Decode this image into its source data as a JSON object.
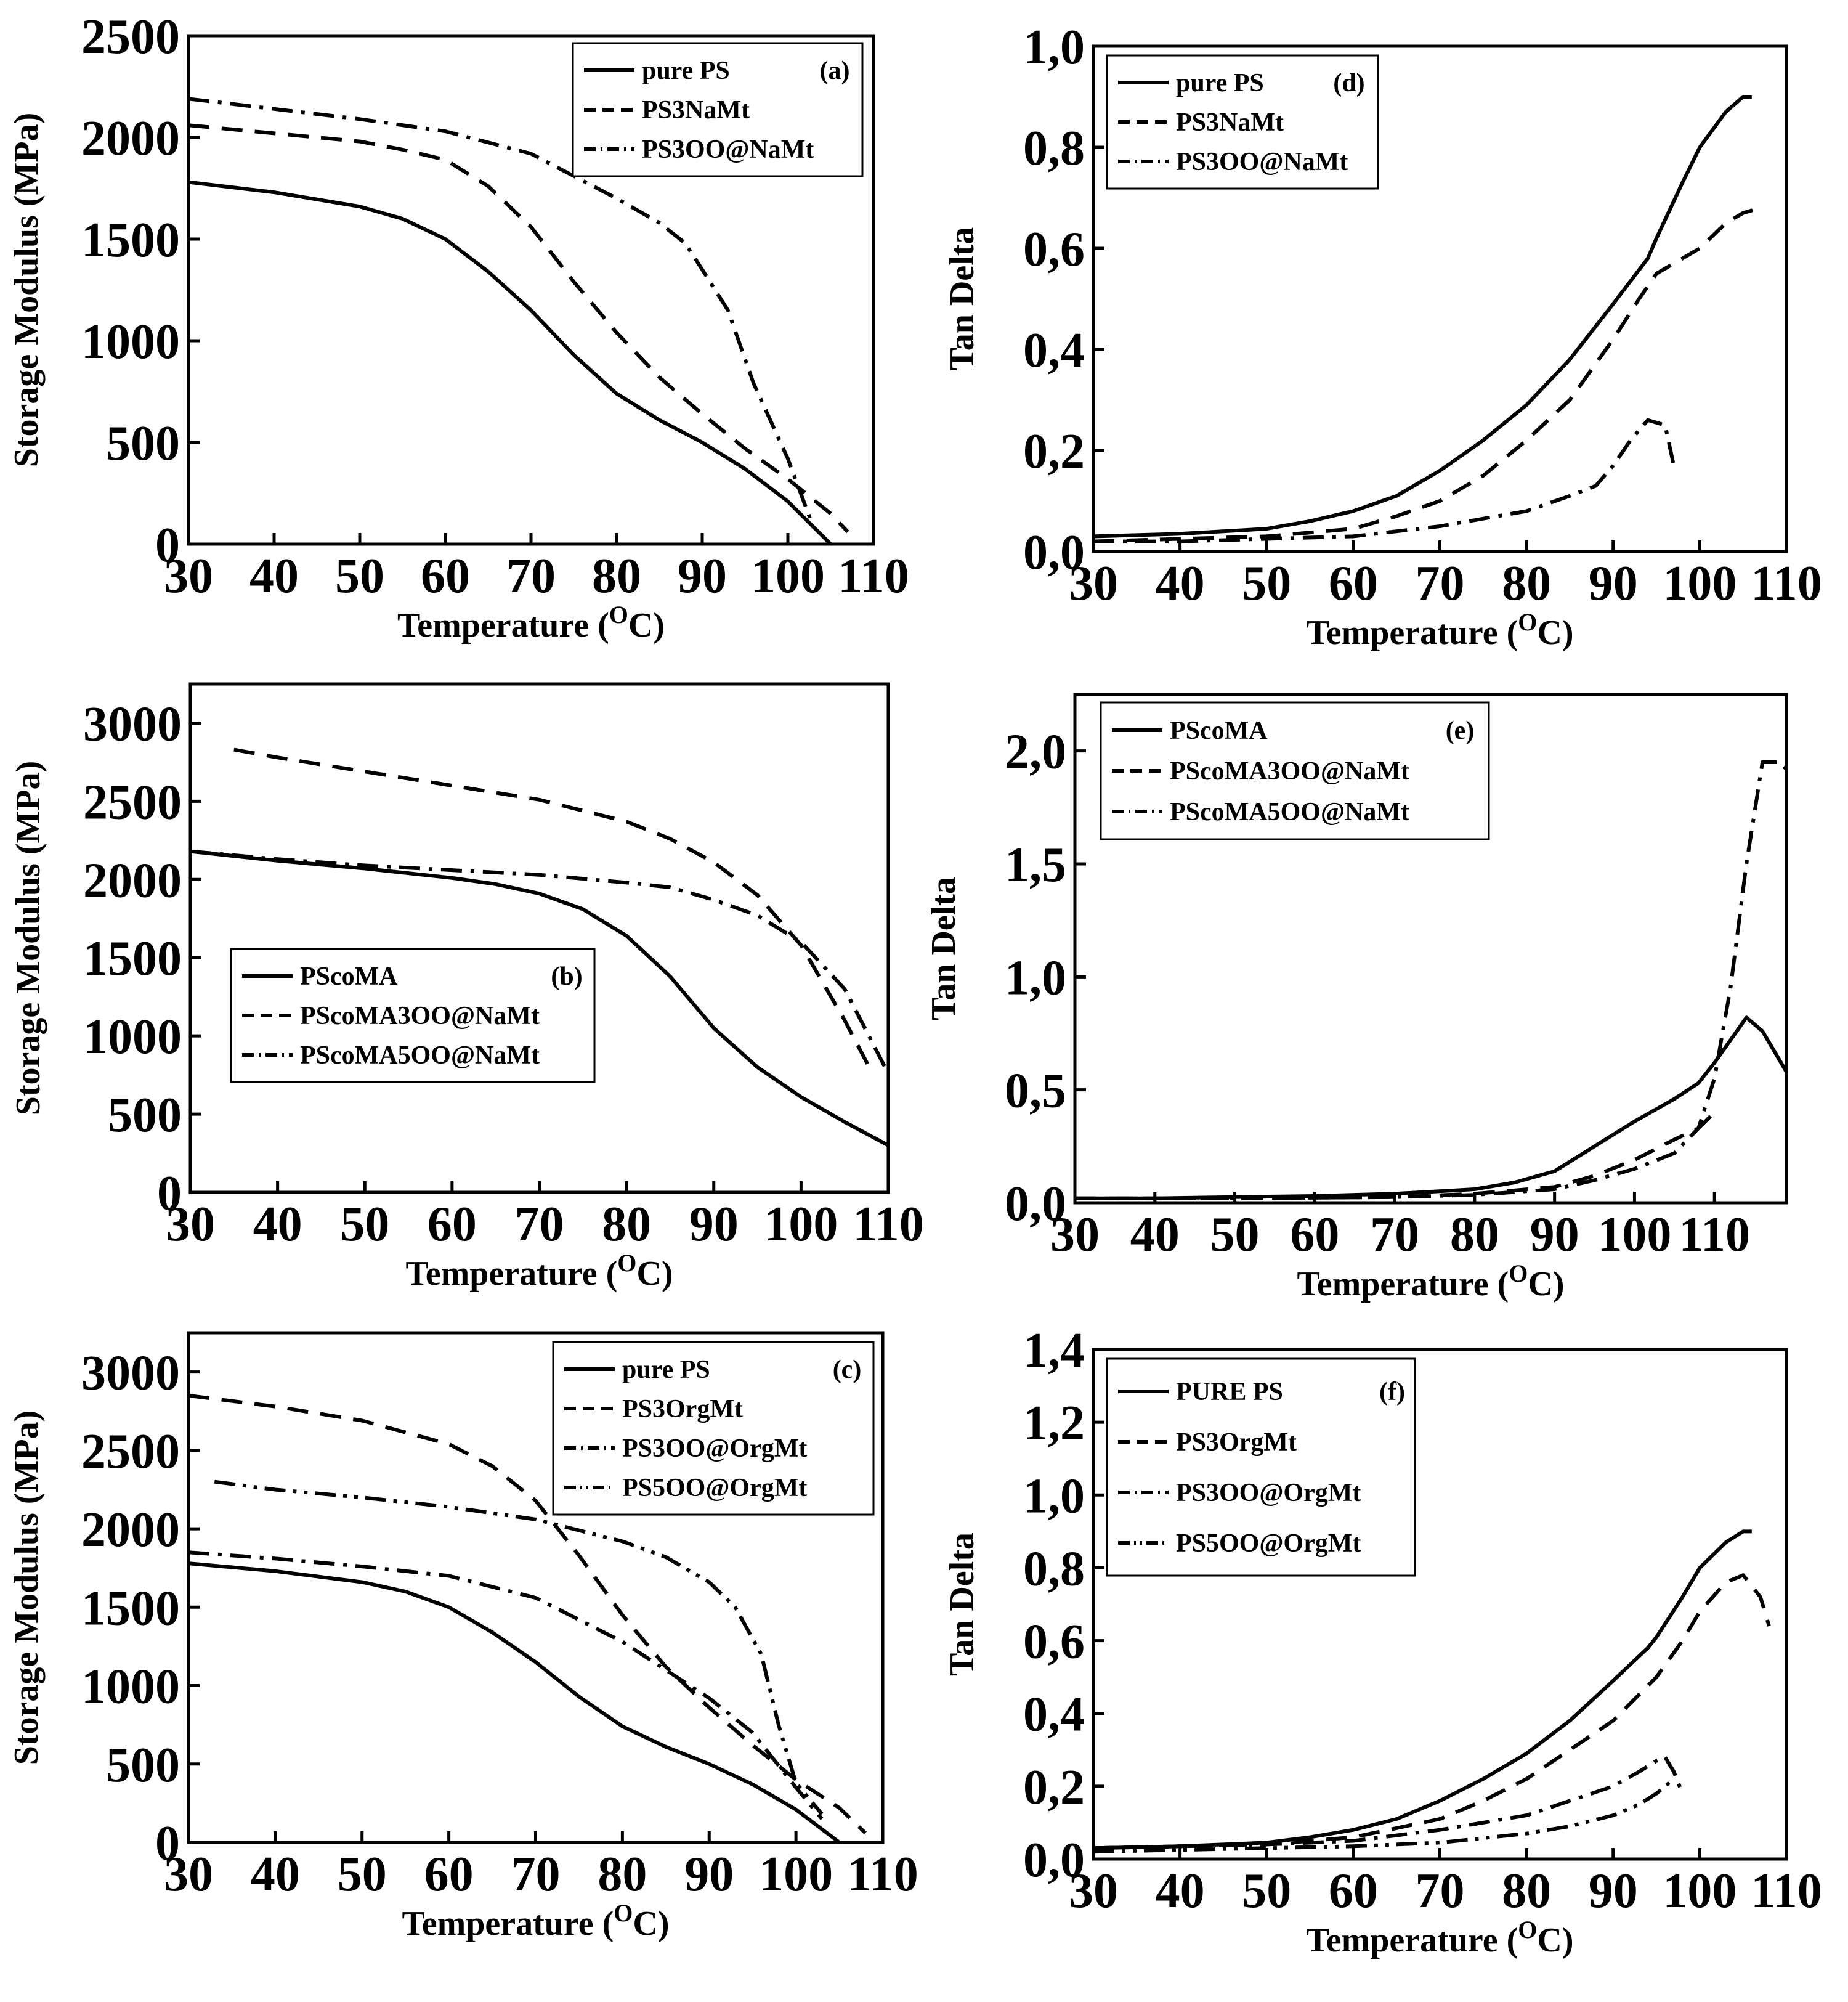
{
  "figure": {
    "description_panels": 6
  },
  "chart_data": [
    {
      "id": "a",
      "type": "line",
      "panel_label": "(a)",
      "xlabel": "Temperature",
      "xunit_base": "(",
      "xunit_sup": "O",
      "xunit_end": "C)",
      "ylabel": "Storage Modulus (MPa)",
      "xlim": [
        30,
        110
      ],
      "ylim": [
        0,
        2500
      ],
      "xticks": [
        30,
        40,
        50,
        60,
        70,
        80,
        90,
        100,
        110
      ],
      "yticks": [
        0,
        500,
        1000,
        1500,
        2000,
        2500
      ],
      "ytick_labels": [
        "0",
        "500",
        "1000",
        "1500",
        "2000",
        "2500"
      ],
      "legend_position": "top-right",
      "series": [
        {
          "name": "pure PS",
          "style": "solid",
          "x": [
            30,
            40,
            50,
            55,
            60,
            65,
            70,
            75,
            80,
            85,
            90,
            95,
            100,
            105
          ],
          "y": [
            1780,
            1730,
            1660,
            1600,
            1500,
            1340,
            1150,
            930,
            740,
            610,
            500,
            370,
            210,
            0
          ]
        },
        {
          "name": "PS3NaMt",
          "style": "dash",
          "x": [
            30,
            40,
            50,
            55,
            60,
            65,
            70,
            75,
            80,
            85,
            90,
            95,
            100,
            105,
            107
          ],
          "y": [
            2060,
            2020,
            1980,
            1940,
            1890,
            1760,
            1560,
            1290,
            1040,
            820,
            640,
            470,
            320,
            150,
            60
          ]
        },
        {
          "name": "PS3OO@NaMt",
          "style": "dashdot",
          "x": [
            30,
            40,
            50,
            60,
            70,
            80,
            85,
            88,
            90,
            93,
            96,
            100,
            103
          ],
          "y": [
            2190,
            2140,
            2090,
            2030,
            1920,
            1700,
            1580,
            1480,
            1350,
            1150,
            790,
            420,
            80
          ]
        }
      ]
    },
    {
      "id": "b",
      "type": "line",
      "panel_label": "(b)",
      "xlabel": "Temperature",
      "xunit_base": "(",
      "xunit_sup": "O",
      "xunit_end": "C)",
      "ylabel": "Storage Modulus (MPa)",
      "xlim": [
        30,
        110
      ],
      "ylim": [
        0,
        3250
      ],
      "xticks": [
        30,
        40,
        50,
        60,
        70,
        80,
        90,
        100,
        110
      ],
      "yticks": [
        0,
        500,
        1000,
        1500,
        2000,
        2500,
        3000
      ],
      "ytick_labels": [
        "0",
        "500",
        "1000",
        "1500",
        "2000",
        "2500",
        "3000"
      ],
      "legend_position": "lower-left",
      "series": [
        {
          "name": "PScoMA",
          "style": "solid",
          "x": [
            30,
            40,
            50,
            60,
            65,
            70,
            75,
            80,
            85,
            90,
            95,
            100,
            105,
            110
          ],
          "y": [
            2180,
            2120,
            2070,
            2010,
            1970,
            1910,
            1810,
            1640,
            1380,
            1050,
            800,
            610,
            450,
            300
          ]
        },
        {
          "name": "PScoMA3OO@NaMt",
          "style": "dash",
          "x": [
            35,
            40,
            50,
            60,
            70,
            80,
            85,
            90,
            95,
            100,
            105,
            108
          ],
          "y": [
            2830,
            2780,
            2690,
            2600,
            2510,
            2370,
            2260,
            2110,
            1900,
            1580,
            1100,
            780
          ]
        },
        {
          "name": "PScoMA5OO@NaMt",
          "style": "dashdot",
          "x": [
            30,
            40,
            50,
            60,
            70,
            80,
            85,
            90,
            95,
            100,
            105,
            110
          ],
          "y": [
            2180,
            2130,
            2090,
            2060,
            2030,
            1980,
            1950,
            1870,
            1770,
            1600,
            1300,
            760
          ]
        }
      ]
    },
    {
      "id": "c",
      "type": "line",
      "panel_label": "(c)",
      "xlabel": "Temperature",
      "xunit_base": "(",
      "xunit_sup": "O",
      "xunit_end": "C)",
      "ylabel": "Storage Modulus (MPa)",
      "xlim": [
        30,
        110
      ],
      "ylim": [
        0,
        3250
      ],
      "xticks": [
        30,
        40,
        50,
        60,
        70,
        80,
        90,
        100,
        110
      ],
      "yticks": [
        0,
        500,
        1000,
        1500,
        2000,
        2500,
        3000
      ],
      "ytick_labels": [
        "0",
        "500",
        "1000",
        "1500",
        "2000",
        "2500",
        "3000"
      ],
      "legend_position": "top-right",
      "series": [
        {
          "name": "pure PS",
          "style": "solid",
          "x": [
            30,
            40,
            50,
            55,
            60,
            65,
            70,
            75,
            80,
            85,
            90,
            95,
            100,
            105
          ],
          "y": [
            1780,
            1730,
            1660,
            1600,
            1500,
            1340,
            1150,
            930,
            740,
            610,
            500,
            370,
            210,
            0
          ]
        },
        {
          "name": "PS3OrgMt",
          "style": "dash",
          "x": [
            30,
            40,
            50,
            60,
            65,
            70,
            75,
            80,
            85,
            90,
            95,
            100,
            105,
            108
          ],
          "y": [
            2850,
            2780,
            2690,
            2540,
            2400,
            2180,
            1830,
            1450,
            1120,
            860,
            620,
            400,
            220,
            60
          ]
        },
        {
          "name": "PS3OO@OrgMt",
          "style": "dashdot",
          "x": [
            30,
            40,
            50,
            60,
            70,
            80,
            85,
            90,
            95,
            97,
            100,
            103
          ],
          "y": [
            1850,
            1810,
            1760,
            1700,
            1560,
            1280,
            1100,
            920,
            700,
            560,
            350,
            150
          ]
        },
        {
          "name": "PS5OO@OrgMt",
          "style": "dashdotdot",
          "x": [
            33,
            40,
            50,
            60,
            70,
            80,
            85,
            90,
            93,
            96,
            98,
            100,
            103
          ],
          "y": [
            2300,
            2250,
            2200,
            2140,
            2060,
            1920,
            1820,
            1660,
            1500,
            1200,
            750,
            380,
            180
          ]
        }
      ]
    },
    {
      "id": "d",
      "type": "line",
      "panel_label": "(d)",
      "xlabel": "Temperature",
      "xunit_base": "(",
      "xunit_sup": "O",
      "xunit_end": "C)",
      "ylabel": "Tan Delta",
      "xlim": [
        30,
        110
      ],
      "ylim": [
        0,
        1.0
      ],
      "xticks": [
        30,
        40,
        50,
        60,
        70,
        80,
        90,
        100,
        110
      ],
      "yticks": [
        0,
        0.2,
        0.4,
        0.6,
        0.8,
        1.0
      ],
      "ytick_labels": [
        "0,0",
        "0,2",
        "0,4",
        "0,6",
        "0,8",
        "1,0"
      ],
      "legend_position": "top-left",
      "series": [
        {
          "name": "pure PS",
          "style": "solid",
          "x": [
            30,
            40,
            50,
            55,
            60,
            65,
            70,
            75,
            80,
            85,
            90,
            94,
            95,
            98,
            100,
            103,
            105,
            106
          ],
          "y": [
            0.03,
            0.035,
            0.045,
            0.06,
            0.08,
            0.11,
            0.16,
            0.22,
            0.29,
            0.38,
            0.49,
            0.58,
            0.62,
            0.73,
            0.8,
            0.87,
            0.9,
            0.9
          ]
        },
        {
          "name": "PS3NaMt",
          "style": "dash",
          "x": [
            30,
            40,
            50,
            60,
            65,
            70,
            75,
            80,
            85,
            90,
            93,
            95,
            97,
            100,
            103,
            105,
            107
          ],
          "y": [
            0.02,
            0.025,
            0.03,
            0.045,
            0.07,
            0.1,
            0.15,
            0.22,
            0.3,
            0.42,
            0.5,
            0.55,
            0.57,
            0.6,
            0.65,
            0.67,
            0.68
          ]
        },
        {
          "name": "PS3OO@NaMt",
          "style": "dashdot",
          "x": [
            30,
            40,
            50,
            60,
            70,
            80,
            85,
            88,
            90,
            92,
            94,
            96,
            97
          ],
          "y": [
            0.02,
            0.02,
            0.025,
            0.03,
            0.05,
            0.08,
            0.11,
            0.13,
            0.17,
            0.22,
            0.26,
            0.25,
            0.17
          ]
        }
      ]
    },
    {
      "id": "e",
      "type": "line",
      "panel_label": "(e)",
      "xlabel": "Temperature",
      "xunit_base": "(",
      "xunit_sup": "O",
      "xunit_end": "C)",
      "ylabel": "Tan Delta",
      "xlim": [
        30,
        119
      ],
      "ylim": [
        0,
        2.25
      ],
      "xticks": [
        30,
        40,
        50,
        60,
        70,
        80,
        90,
        100,
        110
      ],
      "yticks": [
        0,
        0.5,
        1.0,
        1.5,
        2.0
      ],
      "ytick_labels": [
        "0,0",
        "0,5",
        "1,0",
        "1,5",
        "2,0"
      ],
      "legend_position": "top-left",
      "series": [
        {
          "name": "PScoMA",
          "style": "solid",
          "x": [
            30,
            40,
            50,
            60,
            70,
            80,
            85,
            90,
            95,
            100,
            105,
            108,
            110,
            112,
            114,
            116,
            119
          ],
          "y": [
            0.02,
            0.02,
            0.025,
            0.03,
            0.04,
            0.06,
            0.09,
            0.14,
            0.25,
            0.36,
            0.46,
            0.53,
            0.62,
            0.72,
            0.82,
            0.76,
            0.58
          ]
        },
        {
          "name": "PScoMA3OO@NaMt",
          "style": "dash",
          "x": [
            30,
            50,
            70,
            80,
            90,
            95,
            100,
            105,
            108,
            110
          ],
          "y": [
            0.02,
            0.02,
            0.025,
            0.04,
            0.07,
            0.12,
            0.19,
            0.28,
            0.33,
            0.4
          ]
        },
        {
          "name": "PScoMA5OO@NaMt",
          "style": "dashdot",
          "x": [
            30,
            50,
            70,
            80,
            90,
            95,
            100,
            105,
            108,
            110,
            112,
            114,
            116,
            118,
            119
          ],
          "y": [
            0.02,
            0.02,
            0.025,
            0.035,
            0.06,
            0.1,
            0.15,
            0.22,
            0.33,
            0.55,
            0.95,
            1.5,
            1.95,
            1.95,
            1.92
          ]
        }
      ]
    },
    {
      "id": "f",
      "type": "line",
      "panel_label": "(f)",
      "xlabel": "Temperature",
      "xunit_base": "(",
      "xunit_sup": "O",
      "xunit_end": "C)",
      "ylabel": "Tan Delta",
      "xlim": [
        30,
        110
      ],
      "ylim": [
        0,
        1.4
      ],
      "xticks": [
        30,
        40,
        50,
        60,
        70,
        80,
        90,
        100,
        110
      ],
      "yticks": [
        0,
        0.2,
        0.4,
        0.6,
        0.8,
        1.0,
        1.2,
        1.4
      ],
      "ytick_labels": [
        "0,0",
        "0,2",
        "0,4",
        "0,6",
        "0,8",
        "1,0",
        "1,2",
        "1,4"
      ],
      "legend_position": "top-left",
      "series": [
        {
          "name": "PURE PS",
          "style": "solid",
          "x": [
            30,
            40,
            50,
            55,
            60,
            65,
            70,
            75,
            80,
            85,
            90,
            94,
            95,
            98,
            100,
            103,
            105,
            106
          ],
          "y": [
            0.03,
            0.035,
            0.045,
            0.06,
            0.08,
            0.11,
            0.16,
            0.22,
            0.29,
            0.38,
            0.49,
            0.58,
            0.61,
            0.72,
            0.8,
            0.87,
            0.9,
            0.9
          ]
        },
        {
          "name": "PS3OrgMt",
          "style": "dash",
          "x": [
            30,
            40,
            50,
            60,
            70,
            75,
            80,
            85,
            90,
            95,
            98,
            100,
            103,
            105,
            107,
            108
          ],
          "y": [
            0.03,
            0.035,
            0.04,
            0.06,
            0.11,
            0.16,
            0.22,
            0.3,
            0.38,
            0.5,
            0.6,
            0.68,
            0.76,
            0.78,
            0.72,
            0.64
          ]
        },
        {
          "name": "PS3OO@OrgMt",
          "style": "dashdot",
          "x": [
            30,
            40,
            50,
            60,
            70,
            80,
            85,
            90,
            93,
            95,
            96,
            97,
            98
          ],
          "y": [
            0.03,
            0.035,
            0.04,
            0.05,
            0.08,
            0.12,
            0.16,
            0.2,
            0.24,
            0.27,
            0.28,
            0.24,
            0.18
          ]
        },
        {
          "name": "PS5OO@OrgMt",
          "style": "dashdotdot",
          "x": [
            30,
            40,
            50,
            60,
            70,
            80,
            85,
            90,
            93,
            95,
            96,
            97
          ],
          "y": [
            0.02,
            0.025,
            0.03,
            0.035,
            0.045,
            0.07,
            0.09,
            0.12,
            0.15,
            0.18,
            0.2,
            0.22
          ]
        }
      ]
    }
  ]
}
